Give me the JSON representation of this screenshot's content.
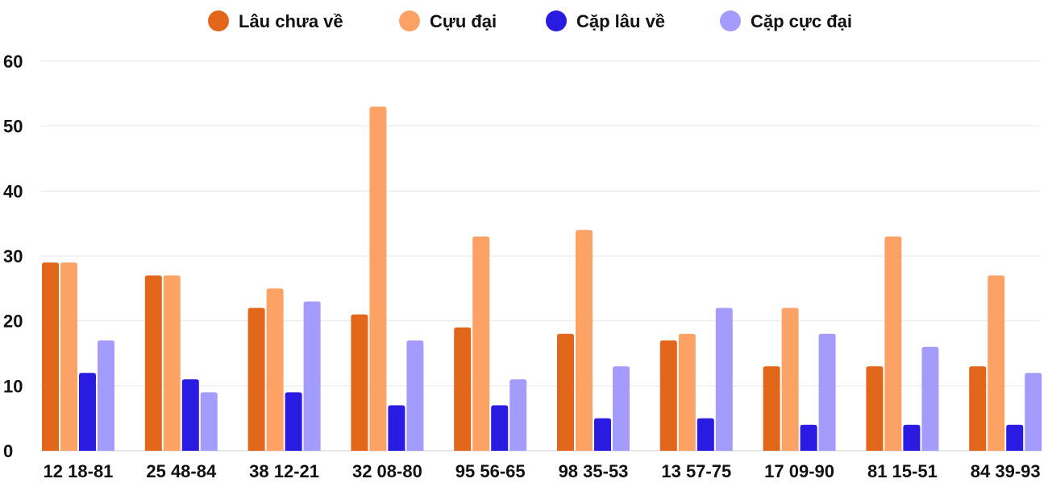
{
  "chart_data": {
    "type": "bar",
    "title": "",
    "xlabel": "",
    "ylabel": "",
    "ylim": [
      0,
      60
    ],
    "yticks": [
      0,
      10,
      20,
      30,
      40,
      50,
      60
    ],
    "grid": true,
    "legend_position": "top-center",
    "categories": [
      "12 18-81",
      "25 48-84",
      "38 12-21",
      "32 08-80",
      "95 56-65",
      "98 35-53",
      "13 57-75",
      "17 09-90",
      "81 15-51",
      "84 39-93"
    ],
    "series": [
      {
        "name": "Lâu chưa về",
        "color": "#e2661a",
        "values": [
          29,
          27,
          22,
          21,
          19,
          18,
          17,
          13,
          13,
          13
        ]
      },
      {
        "name": "Cựu đại",
        "color": "#fca265",
        "values": [
          29,
          27,
          25,
          53,
          33,
          34,
          18,
          22,
          33,
          27
        ]
      },
      {
        "name": "Cặp lâu về",
        "color": "#2a1be2",
        "values": [
          12,
          11,
          9,
          7,
          7,
          5,
          5,
          4,
          4,
          4
        ]
      },
      {
        "name": "Cặp cực đại",
        "color": "#a49cfd",
        "values": [
          17,
          9,
          23,
          17,
          11,
          13,
          22,
          18,
          16,
          12
        ]
      }
    ]
  }
}
